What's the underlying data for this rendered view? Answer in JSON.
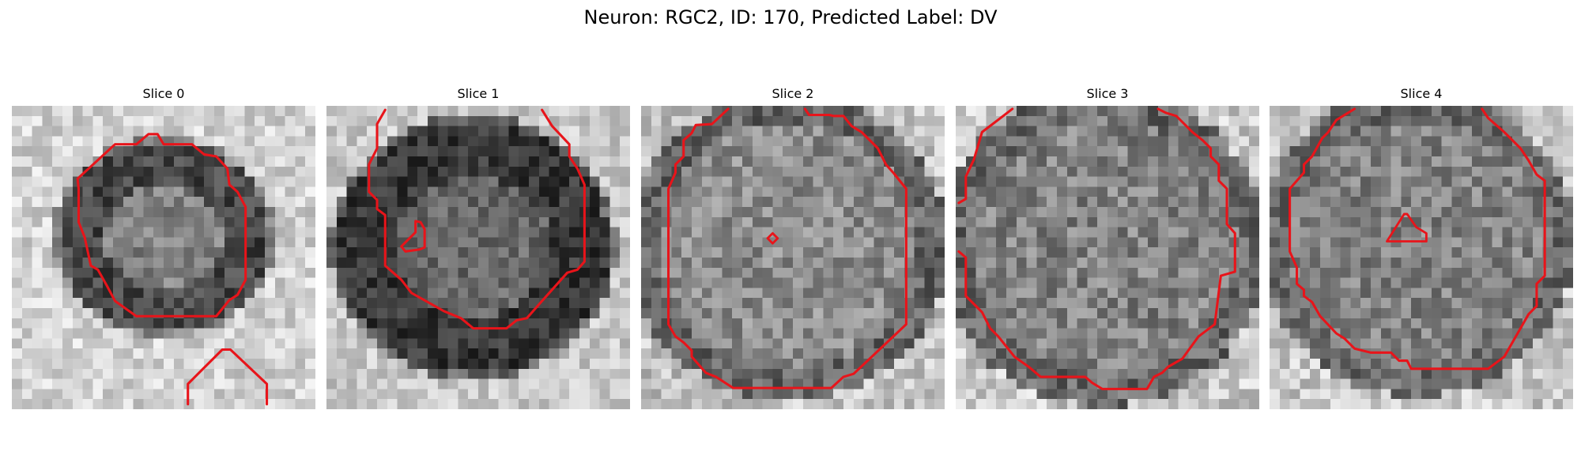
{
  "figure": {
    "title": "Neuron: RGC2, ID: 170, Predicted Label: DV"
  },
  "colors": {
    "contour": "#e8141a",
    "background": "#ffffff"
  },
  "slices": [
    {
      "title": "Slice 0"
    },
    {
      "title": "Slice 1"
    },
    {
      "title": "Slice 2"
    },
    {
      "title": "Slice 3"
    },
    {
      "title": "Slice 4"
    }
  ]
}
